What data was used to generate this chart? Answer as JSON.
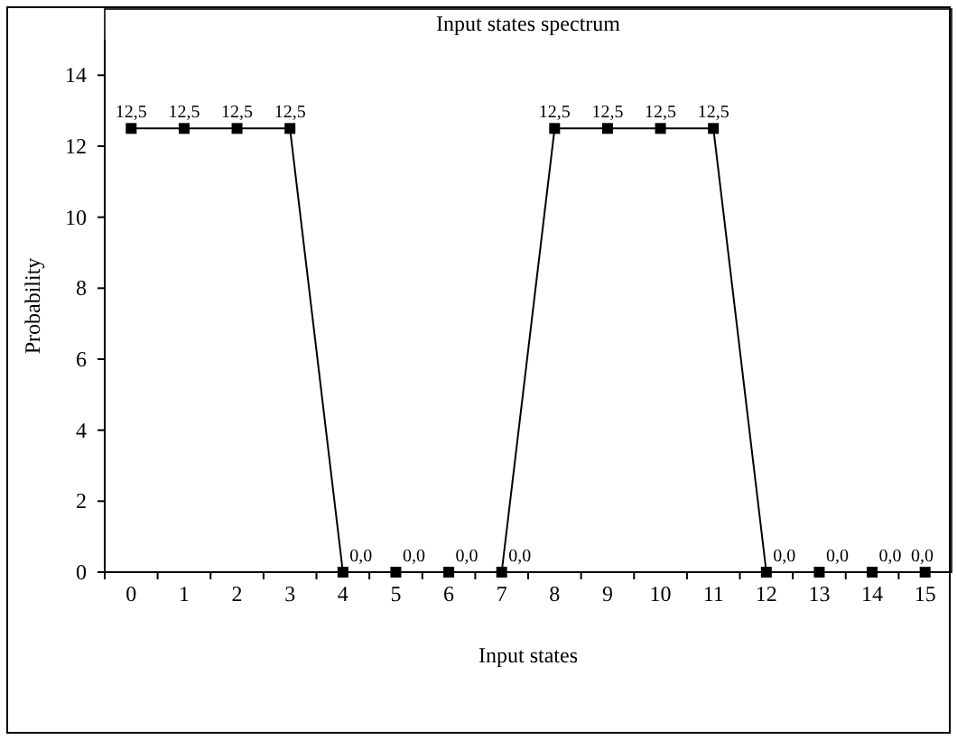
{
  "chart_data": {
    "type": "line",
    "title": "Input states spectrum",
    "xlabel": "Input states",
    "ylabel": "Probability",
    "categories": [
      "0",
      "1",
      "2",
      "3",
      "4",
      "5",
      "6",
      "7",
      "8",
      "9",
      "10",
      "11",
      "12",
      "13",
      "14",
      "15"
    ],
    "values": [
      12.5,
      12.5,
      12.5,
      12.5,
      0,
      0,
      0,
      0,
      12.5,
      12.5,
      12.5,
      12.5,
      0,
      0,
      0,
      0
    ],
    "value_labels": [
      "12,5",
      "12,5",
      "12,5",
      "12,5",
      "0,0",
      "0,0",
      "0,0",
      "0,0",
      "12,5",
      "12,5",
      "12,5",
      "12,5",
      "0,0",
      "0,0",
      "0,0",
      "0,0"
    ],
    "color": "#000000",
    "marker": "square",
    "line_style": "solid",
    "ylim": [
      0,
      15
    ],
    "yticks": [
      0,
      2,
      4,
      6,
      8,
      10,
      12,
      14
    ]
  }
}
